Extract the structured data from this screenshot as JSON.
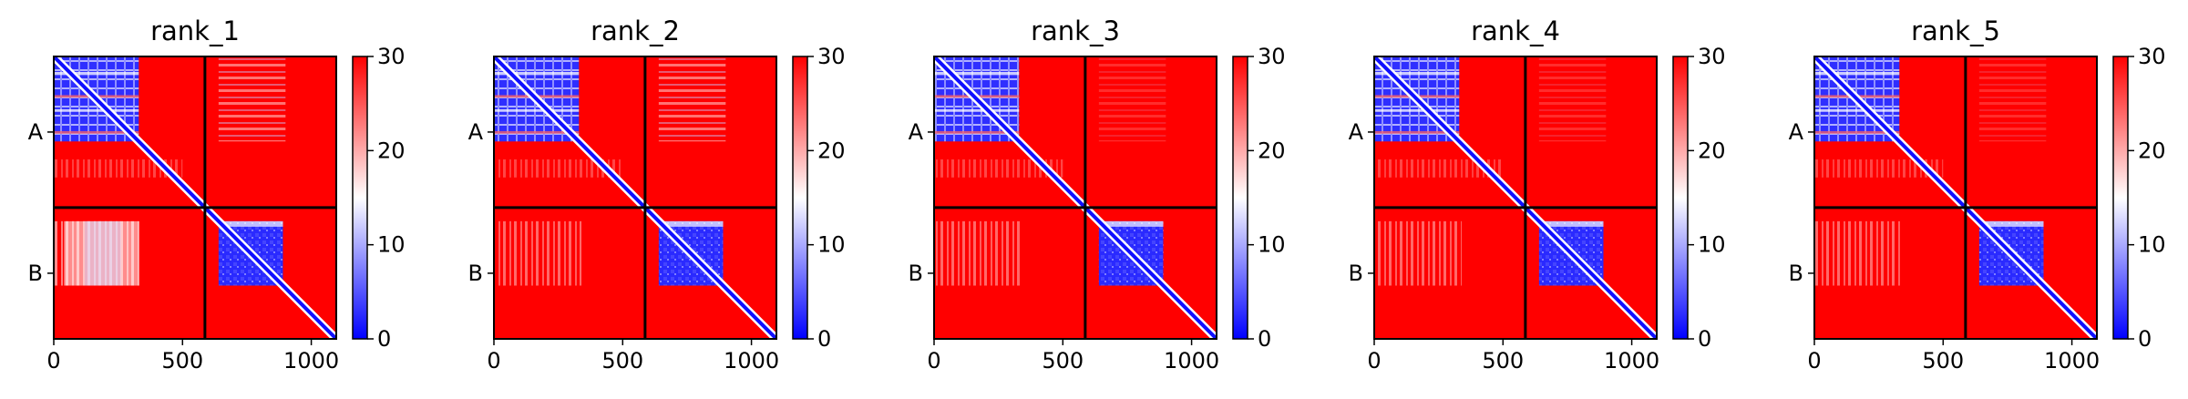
{
  "chart_data": [
    {
      "type": "heatmap",
      "title": "rank_1",
      "x_ticks": [
        0,
        500,
        1000
      ],
      "y_tick_labels": [
        "A",
        "B"
      ],
      "chain_lengths": [
        587,
        510
      ],
      "colorbar": {
        "range": [
          0,
          30
        ],
        "ticks": [
          0,
          10,
          20,
          30
        ],
        "colormap": "bwr"
      },
      "grid": false
    },
    {
      "type": "heatmap",
      "title": "rank_2",
      "x_ticks": [
        0,
        500,
        1000
      ],
      "y_tick_labels": [
        "A",
        "B"
      ],
      "chain_lengths": [
        587,
        510
      ],
      "colorbar": {
        "range": [
          0,
          30
        ],
        "ticks": [
          0,
          10,
          20,
          30
        ],
        "colormap": "bwr"
      },
      "grid": false
    },
    {
      "type": "heatmap",
      "title": "rank_3",
      "x_ticks": [
        0,
        500,
        1000
      ],
      "y_tick_labels": [
        "A",
        "B"
      ],
      "chain_lengths": [
        587,
        510
      ],
      "colorbar": {
        "range": [
          0,
          30
        ],
        "ticks": [
          0,
          10,
          20,
          30
        ],
        "colormap": "bwr"
      },
      "grid": false
    },
    {
      "type": "heatmap",
      "title": "rank_4",
      "x_ticks": [
        0,
        500,
        1000
      ],
      "y_tick_labels": [
        "A",
        "B"
      ],
      "chain_lengths": [
        587,
        510
      ],
      "colorbar": {
        "range": [
          0,
          30
        ],
        "ticks": [
          0,
          10,
          20,
          30
        ],
        "colormap": "bwr"
      },
      "grid": false
    },
    {
      "type": "heatmap",
      "title": "rank_5",
      "x_ticks": [
        0,
        500,
        1000
      ],
      "y_tick_labels": [
        "A",
        "B"
      ],
      "chain_lengths": [
        587,
        510
      ],
      "colorbar": {
        "range": [
          0,
          30
        ],
        "ticks": [
          0,
          10,
          20,
          30
        ],
        "colormap": "bwr"
      },
      "grid": false
    }
  ],
  "colors": {
    "high": "#ff0000",
    "mid": "#ffffff",
    "low": "#0000ff",
    "frame": "#000000"
  }
}
